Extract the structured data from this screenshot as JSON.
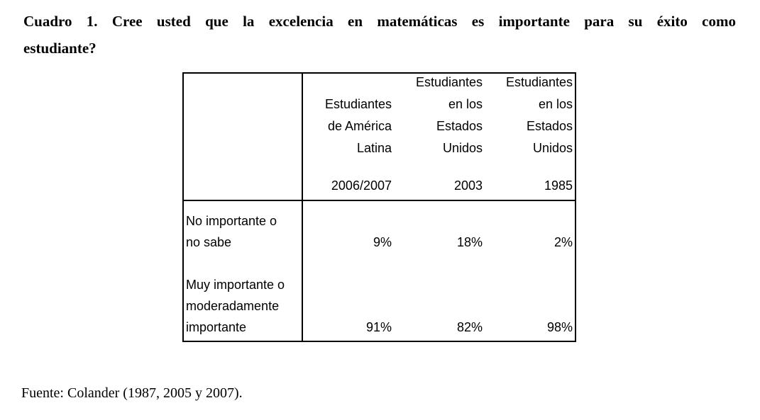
{
  "title": {
    "line1": "Cuadro 1. Cree usted que la excelencia en matemáticas es importante para su éxito como",
    "line2": "estudiante?"
  },
  "table": {
    "columns": [
      {
        "label": "",
        "year": ""
      },
      {
        "label": "Estudiantes\nde América\nLatina",
        "year": "2006/2007"
      },
      {
        "label": "Estudiantes\nen los\nEstados\nUnidos",
        "year": "2003"
      },
      {
        "label": "Estudiantes\nen los\nEstados\nUnidos",
        "year": "1985"
      }
    ],
    "rows": [
      {
        "label": "No importante o\nno sabe",
        "values": [
          "9%",
          "18%",
          "2%"
        ]
      },
      {
        "label": "Muy importante o\nmoderadamente\nimportante",
        "values": [
          "91%",
          "82%",
          "98%"
        ]
      }
    ]
  },
  "source": {
    "text": "Fuente: Colander (1987, 2005 y 2007)."
  },
  "colors": {
    "text": "#000000",
    "background": "#ffffff",
    "border": "#000000"
  }
}
